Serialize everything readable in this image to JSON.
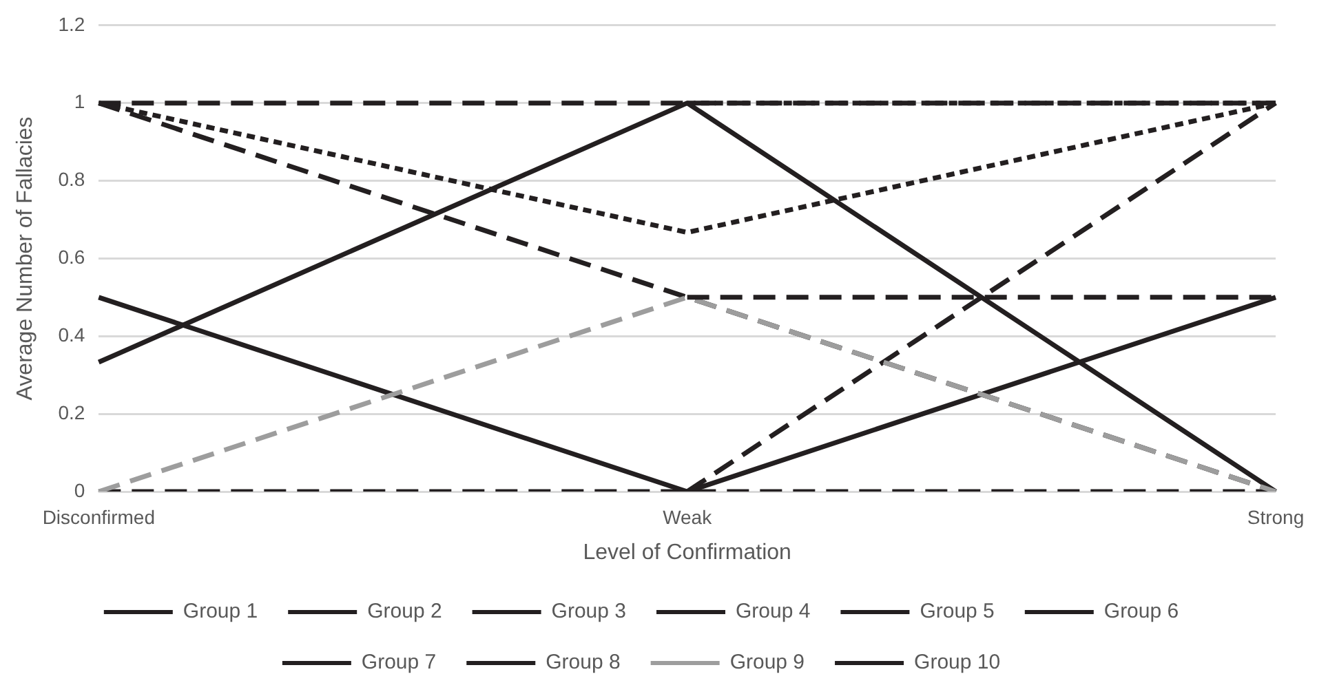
{
  "chart_data": {
    "type": "line",
    "xlabel": "Level of Confirmation",
    "ylabel": "Average Number of Fallacies",
    "categories": [
      "Disconfirmed",
      "Weak",
      "Strong"
    ],
    "ylim": [
      0,
      1.2
    ],
    "yticks": [
      0,
      0.2,
      0.4,
      0.6,
      0.8,
      1,
      1.2
    ],
    "grid": "y",
    "legend": "bottom",
    "marker": "none",
    "series": [
      {
        "name": "Group 1",
        "color": "#231f20",
        "line_style": "dashed",
        "values": [
          1,
          0.5,
          0
        ]
      },
      {
        "name": "Group 2",
        "color": "#231f20",
        "line_style": "dashed",
        "values": [
          1,
          1,
          1
        ]
      },
      {
        "name": "Group 3",
        "color": "#231f20",
        "line_style": "dashed",
        "values": [
          0,
          0,
          0
        ]
      },
      {
        "name": "Group 4",
        "color": "#231f20",
        "line_style": "dotted",
        "values": [
          1,
          0.667,
          1
        ]
      },
      {
        "name": "Group 5",
        "color": "#231f20",
        "line_style": "dotted",
        "values": [
          null,
          1,
          1
        ]
      },
      {
        "name": "Group 6",
        "color": "#231f20",
        "line_style": "solid",
        "values": [
          0.333,
          1,
          0
        ]
      },
      {
        "name": "Group 7",
        "color": "#231f20",
        "line_style": "solid",
        "values": [
          0.5,
          0,
          0.5
        ]
      },
      {
        "name": "Group 8",
        "color": "#231f20",
        "line_style": "dashed",
        "values": [
          null,
          0,
          1
        ]
      },
      {
        "name": "Group 9",
        "color": "#9d9d9d",
        "line_style": "dashed",
        "values": [
          0,
          0.5,
          0
        ]
      },
      {
        "name": "Group 10",
        "color": "#231f20",
        "line_style": "dashed",
        "values": [
          null,
          0.5,
          0.5
        ]
      }
    ]
  }
}
